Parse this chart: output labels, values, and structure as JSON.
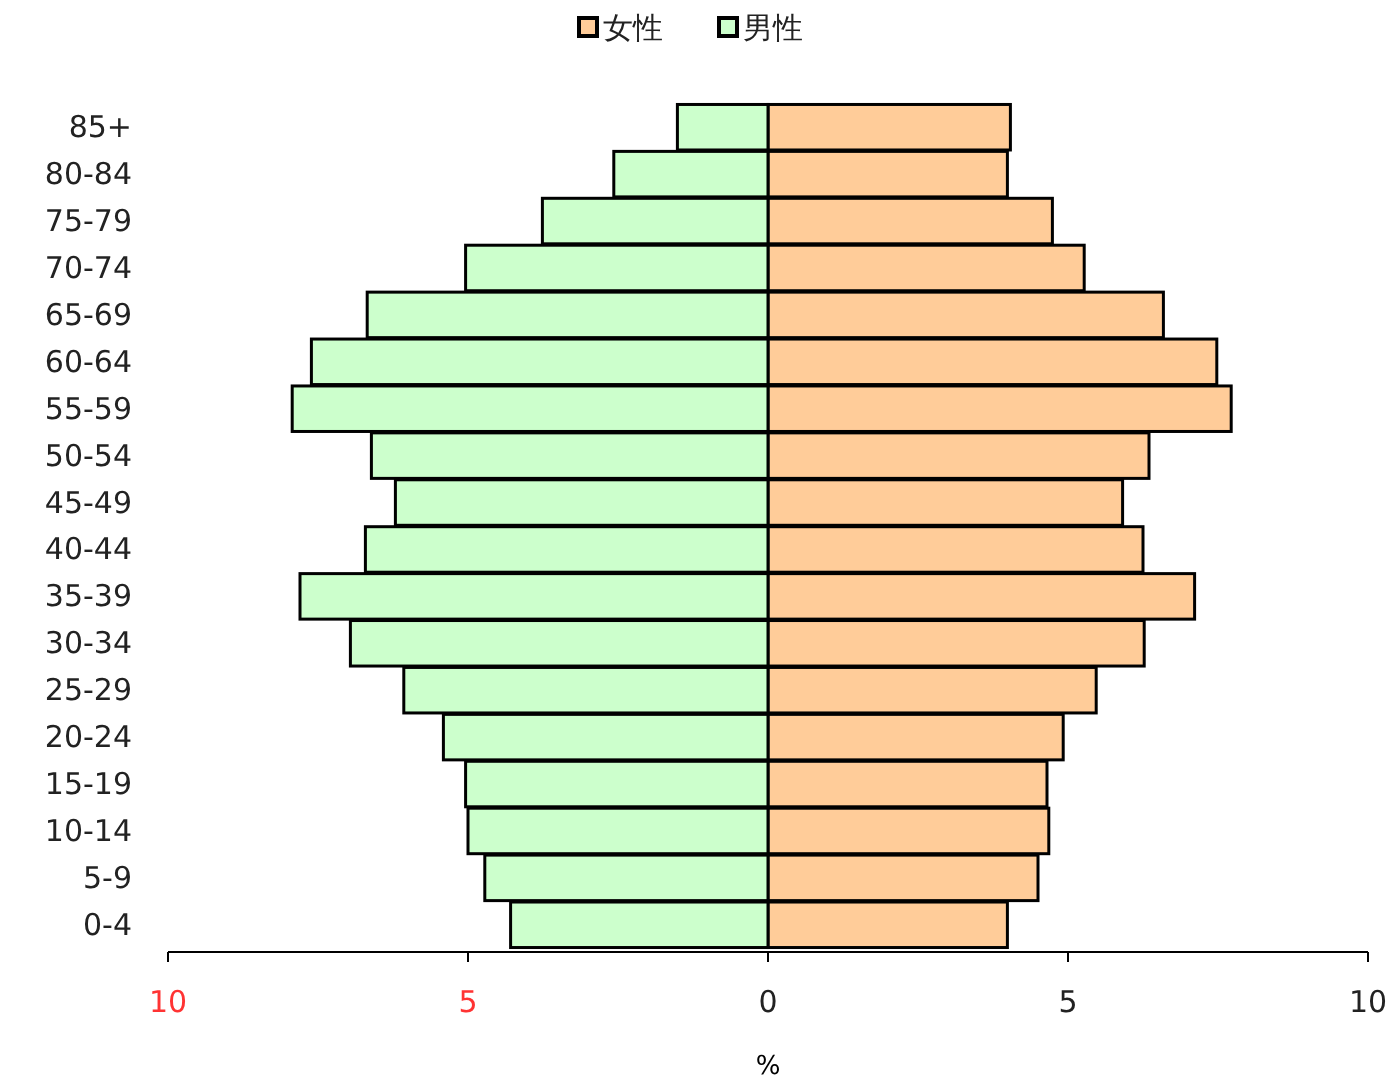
{
  "chart_data": {
    "type": "bar",
    "orientation": "horizontal",
    "stacked": true,
    "xlabel": "%",
    "categories": [
      "85+",
      "80-84",
      "75-79",
      "70-74",
      "65-69",
      "60-64",
      "55-59",
      "50-54",
      "45-49",
      "40-44",
      "35-39",
      "30-34",
      "25-29",
      "20-24",
      "15-19",
      "10-14",
      "5-9",
      "0-4"
    ],
    "series": [
      {
        "name": "女性",
        "color": "#ffcc99",
        "values": [
          4.04,
          3.99,
          4.74,
          5.27,
          6.59,
          7.48,
          7.72,
          6.35,
          5.91,
          6.25,
          7.11,
          6.27,
          5.47,
          4.92,
          4.65,
          4.68,
          4.5,
          3.99
        ]
      },
      {
        "name": "男性",
        "color": "#ccffcc",
        "values": [
          -1.51,
          -2.57,
          -3.76,
          -5.04,
          -6.68,
          -7.61,
          -7.93,
          -6.61,
          -6.21,
          -6.71,
          -7.8,
          -6.96,
          -6.07,
          -5.41,
          -5.04,
          -5,
          -4.72,
          -4.29
        ]
      }
    ],
    "xlim": [
      -10,
      10
    ],
    "xticks": [
      {
        "value": -10,
        "label": "10"
      },
      {
        "value": -5,
        "label": "5"
      },
      0,
      5,
      10
    ],
    "legend": "top"
  }
}
